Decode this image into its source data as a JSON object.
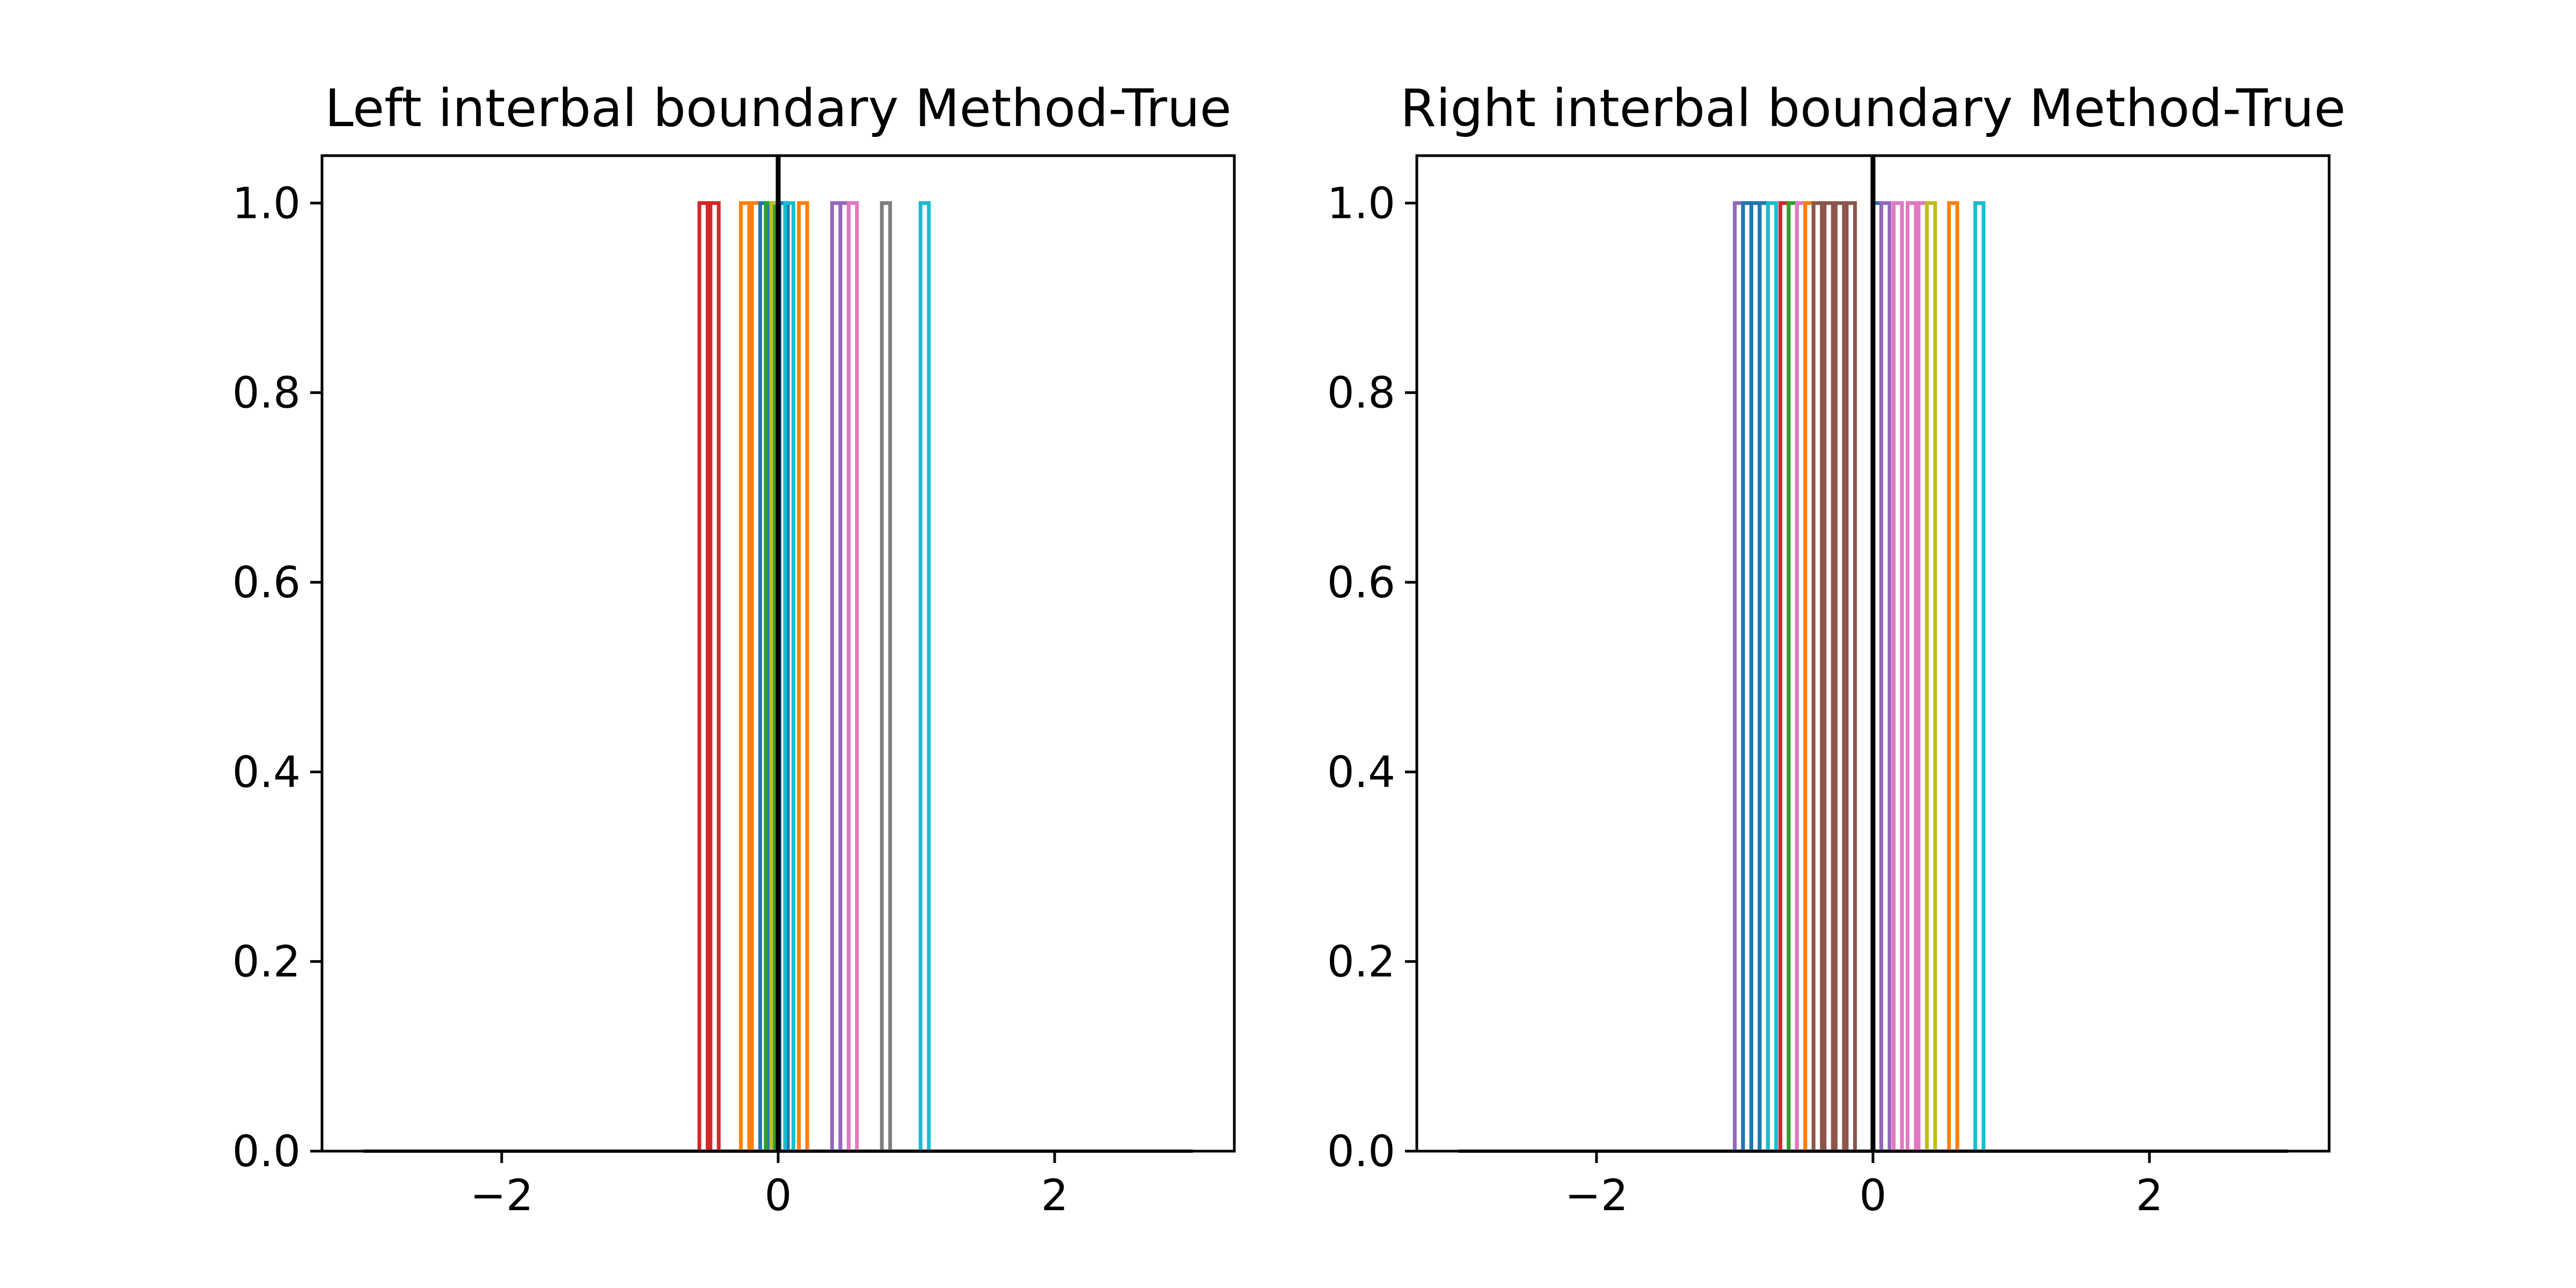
{
  "chart_data": [
    {
      "type": "histogram",
      "title": "Left interbal boundary Method-True",
      "xlabel": "",
      "ylabel": "",
      "xlim": [
        -3.3,
        3.3
      ],
      "ylim": [
        0,
        1.05
      ],
      "x_ticks": [
        {
          "value": -2,
          "label": "−2"
        },
        {
          "value": 0,
          "label": "0"
        },
        {
          "value": 2,
          "label": "2"
        }
      ],
      "y_ticks": [
        {
          "value": 0,
          "label": "0.0"
        },
        {
          "value": 0.2,
          "label": "0.2"
        },
        {
          "value": 0.4,
          "label": "0.4"
        },
        {
          "value": 0.6,
          "label": "0.6"
        },
        {
          "value": 0.8,
          "label": "0.8"
        },
        {
          "value": 1.0,
          "label": "1.0"
        }
      ],
      "reference_line_x": 0,
      "reference_line_color": "#000000",
      "baseline_range": [
        -3.0,
        3.0
      ],
      "bar_width": 0.06,
      "series": [
        {
          "x": -0.54,
          "count": 1,
          "color": "#d62728"
        },
        {
          "x": -0.46,
          "count": 1,
          "color": "#d62728"
        },
        {
          "x": -0.24,
          "count": 1,
          "color": "#ff7f0e"
        },
        {
          "x": -0.16,
          "count": 1,
          "color": "#ff7f0e"
        },
        {
          "x": -0.1,
          "count": 1,
          "color": "#1f77b4"
        },
        {
          "x": -0.06,
          "count": 1,
          "color": "#2ca02c"
        },
        {
          "x": -0.02,
          "count": 1,
          "color": "#bcbd22"
        },
        {
          "x": 0.04,
          "count": 1,
          "color": "#1f77b4"
        },
        {
          "x": 0.08,
          "count": 1,
          "color": "#17becf"
        },
        {
          "x": 0.18,
          "count": 1,
          "color": "#ff7f0e"
        },
        {
          "x": 0.42,
          "count": 1,
          "color": "#9467bd"
        },
        {
          "x": 0.48,
          "count": 1,
          "color": "#9467bd"
        },
        {
          "x": 0.54,
          "count": 1,
          "color": "#e377c2"
        },
        {
          "x": 0.78,
          "count": 1,
          "color": "#7f7f7f"
        },
        {
          "x": 1.06,
          "count": 1,
          "color": "#17becf"
        }
      ]
    },
    {
      "type": "histogram",
      "title": "Right interbal boundary Method-True",
      "xlabel": "",
      "ylabel": "",
      "xlim": [
        -3.3,
        3.3
      ],
      "ylim": [
        0,
        1.05
      ],
      "x_ticks": [
        {
          "value": -2,
          "label": "−2"
        },
        {
          "value": 0,
          "label": "0"
        },
        {
          "value": 2,
          "label": "2"
        }
      ],
      "y_ticks": [
        {
          "value": 0,
          "label": "0.0"
        },
        {
          "value": 0.2,
          "label": "0.2"
        },
        {
          "value": 0.4,
          "label": "0.4"
        },
        {
          "value": 0.6,
          "label": "0.6"
        },
        {
          "value": 0.8,
          "label": "0.8"
        },
        {
          "value": 1.0,
          "label": "1.0"
        }
      ],
      "reference_line_x": 0,
      "reference_line_color": "#000000",
      "baseline_range": [
        -3.0,
        3.0
      ],
      "bar_width": 0.06,
      "series": [
        {
          "x": -0.97,
          "count": 1,
          "color": "#9467bd"
        },
        {
          "x": -0.91,
          "count": 1,
          "color": "#1f77b4"
        },
        {
          "x": -0.85,
          "count": 1,
          "color": "#1f77b4"
        },
        {
          "x": -0.79,
          "count": 1,
          "color": "#1f77b4"
        },
        {
          "x": -0.73,
          "count": 1,
          "color": "#17becf"
        },
        {
          "x": -0.64,
          "count": 1,
          "color": "#d62728"
        },
        {
          "x": -0.58,
          "count": 1,
          "color": "#2ca02c"
        },
        {
          "x": -0.52,
          "count": 1,
          "color": "#e377c2"
        },
        {
          "x": -0.46,
          "count": 1,
          "color": "#ff7f0e"
        },
        {
          "x": -0.4,
          "count": 1,
          "color": "#8c564b"
        },
        {
          "x": -0.32,
          "count": 1,
          "color": "#8c564b"
        },
        {
          "x": -0.24,
          "count": 1,
          "color": "#8c564b"
        },
        {
          "x": -0.16,
          "count": 1,
          "color": "#8c564b"
        },
        {
          "x": 0.03,
          "count": 1,
          "color": "#1f77b4"
        },
        {
          "x": 0.09,
          "count": 1,
          "color": "#9467bd"
        },
        {
          "x": 0.18,
          "count": 1,
          "color": "#e377c2"
        },
        {
          "x": 0.28,
          "count": 1,
          "color": "#e377c2"
        },
        {
          "x": 0.36,
          "count": 1,
          "color": "#e377c2"
        },
        {
          "x": 0.42,
          "count": 1,
          "color": "#bcbd22"
        },
        {
          "x": 0.58,
          "count": 1,
          "color": "#ff7f0e"
        },
        {
          "x": 0.77,
          "count": 1,
          "color": "#17becf"
        }
      ]
    }
  ]
}
